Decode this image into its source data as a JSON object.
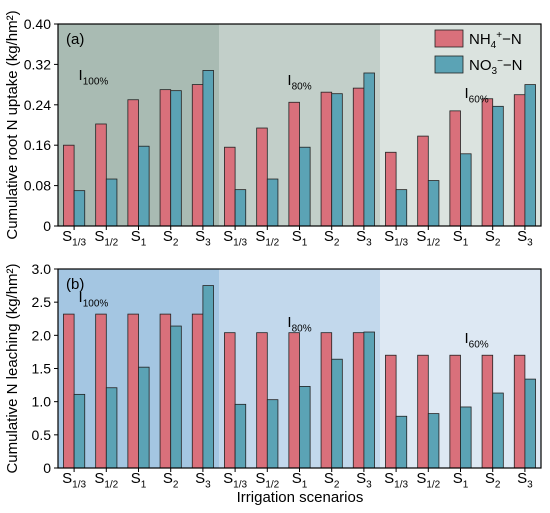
{
  "figure": {
    "xlabel": "Irrigation scenarios",
    "colors": {
      "nh4": "#d9707b",
      "no3": "#5ba3b5"
    }
  },
  "chart_data": [
    {
      "type": "bar",
      "panel_label": "(a)",
      "ylabel": "Cumulative root N uptake (kg/hm²)",
      "ylim": [
        0,
        0.4
      ],
      "yticks": [
        "0",
        "0.08",
        "0.16",
        "0.24",
        "0.32",
        "0.40"
      ],
      "ytick_values": [
        0,
        0.08,
        0.16,
        0.24,
        0.32,
        0.4
      ],
      "legend": {
        "position": "top-right",
        "entries": [
          "NH4+-N",
          "NO3−-N"
        ]
      },
      "groups": [
        {
          "label": "I100%",
          "bg": "#a9bbb3",
          "categories": [
            "S1/3",
            "S1/2",
            "S1",
            "S2",
            "S3"
          ],
          "series": [
            {
              "name": "NH4+-N",
              "values": [
                0.16,
                0.202,
                0.25,
                0.27,
                0.28
              ]
            },
            {
              "name": "NO3−-N",
              "values": [
                0.07,
                0.093,
                0.158,
                0.268,
                0.308
              ]
            }
          ]
        },
        {
          "label": "I80%",
          "bg": "#c2cfc9",
          "categories": [
            "S1/3",
            "S1/2",
            "S1",
            "S2",
            "S3"
          ],
          "series": [
            {
              "name": "NH4+-N",
              "values": [
                0.156,
                0.194,
                0.245,
                0.265,
                0.273
              ]
            },
            {
              "name": "NO3−-N",
              "values": [
                0.072,
                0.093,
                0.156,
                0.262,
                0.303
              ]
            }
          ]
        },
        {
          "label": "I60%",
          "bg": "#dbe3df",
          "categories": [
            "S1/3",
            "S1/2",
            "S1",
            "S2",
            "S3"
          ],
          "series": [
            {
              "name": "NH4+-N",
              "values": [
                0.146,
                0.178,
                0.228,
                0.252,
                0.26
              ]
            },
            {
              "name": "NO3−-N",
              "values": [
                0.072,
                0.09,
                0.143,
                0.237,
                0.28
              ]
            }
          ]
        }
      ]
    },
    {
      "type": "bar",
      "panel_label": "(b)",
      "ylabel": "Cumulative N leaching (kg/hm²)",
      "ylim": [
        0,
        3.0
      ],
      "yticks": [
        "0",
        "0.5",
        "1.0",
        "1.5",
        "2.0",
        "2.5",
        "3.0"
      ],
      "ytick_values": [
        0,
        0.5,
        1.0,
        1.5,
        2.0,
        2.5,
        3.0
      ],
      "groups": [
        {
          "label": "I100%",
          "bg": "#a4c6e2",
          "categories": [
            "S1/3",
            "S1/2",
            "S1",
            "S2",
            "S3"
          ],
          "series": [
            {
              "name": "NH4+-N",
              "values": [
                2.32,
                2.32,
                2.32,
                2.32,
                2.32
              ]
            },
            {
              "name": "NO3−-N",
              "values": [
                1.11,
                1.21,
                1.52,
                2.14,
                2.75
              ]
            }
          ]
        },
        {
          "label": "I80%",
          "bg": "#c2d8ec",
          "categories": [
            "S1/3",
            "S1/2",
            "S1",
            "S2",
            "S3"
          ],
          "series": [
            {
              "name": "NH4+-N",
              "values": [
                2.04,
                2.04,
                2.04,
                2.04,
                2.04
              ]
            },
            {
              "name": "NO3−-N",
              "values": [
                0.96,
                1.03,
                1.23,
                1.64,
                2.05
              ]
            }
          ]
        },
        {
          "label": "I60%",
          "bg": "#dde8f3",
          "categories": [
            "S1/3",
            "S1/2",
            "S1",
            "S2",
            "S3"
          ],
          "series": [
            {
              "name": "NH4+-N",
              "values": [
                1.7,
                1.7,
                1.7,
                1.7,
                1.7
              ]
            },
            {
              "name": "NO3−-N",
              "values": [
                0.78,
                0.82,
                0.92,
                1.13,
                1.34
              ]
            }
          ]
        }
      ]
    }
  ]
}
